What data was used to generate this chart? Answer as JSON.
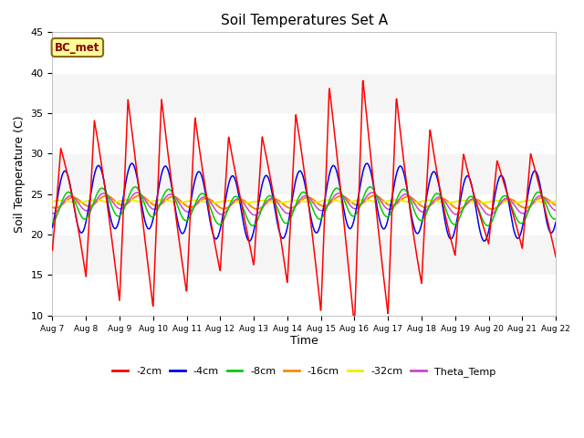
{
  "title": "Soil Temperatures Set A",
  "xlabel": "Time",
  "ylabel": "Soil Temperature (C)",
  "ylim": [
    10,
    45
  ],
  "annotation": "BC_met",
  "fig_bg": "#ffffff",
  "plot_bg": "#f5f5f5",
  "band_color": "#e8e8e8",
  "series_colors": {
    "-2cm": "#ff0000",
    "-4cm": "#0000ee",
    "-8cm": "#00cc00",
    "-16cm": "#ff8800",
    "-32cm": "#eeee00",
    "Theta_Temp": "#cc44cc"
  },
  "legend_labels": [
    "-2cm",
    "-4cm",
    "-8cm",
    "-16cm",
    "-32cm",
    "Theta_Temp"
  ],
  "xtick_labels": [
    "Aug 7",
    "Aug 8",
    "Aug 9",
    "Aug 10",
    "Aug 11",
    "Aug 12",
    "Aug 13",
    "Aug 14",
    "Aug 15",
    "Aug 16",
    "Aug 17",
    "Aug 18",
    "Aug 19",
    "Aug 20",
    "Aug 21",
    "Aug 22"
  ],
  "yticks": [
    10,
    15,
    20,
    25,
    30,
    35,
    40,
    45
  ],
  "days": 15,
  "n_points": 1500
}
